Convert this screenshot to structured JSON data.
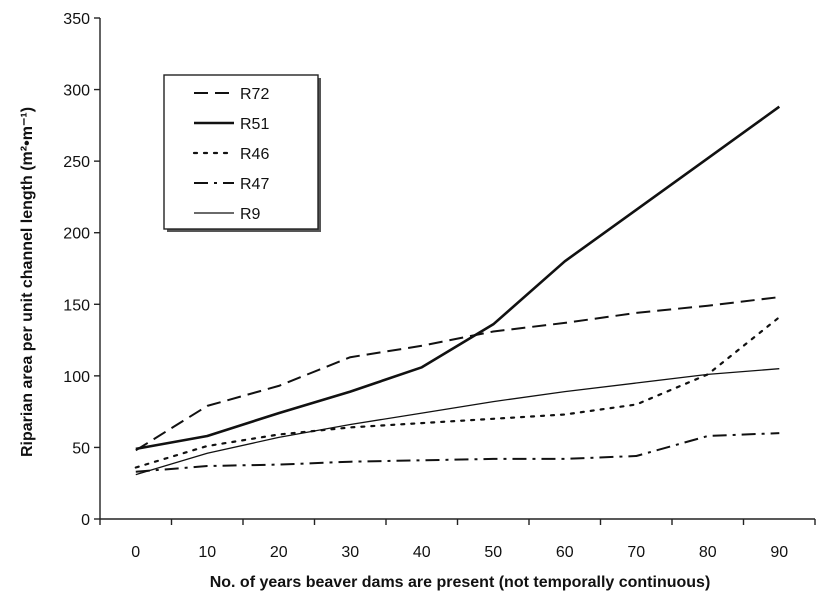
{
  "chart_data": {
    "type": "line",
    "x": [
      0,
      10,
      20,
      30,
      40,
      50,
      60,
      70,
      80,
      90
    ],
    "xlabel": "No. of years beaver dams are present (not temporally continuous)",
    "ylabel": "Riparian area per unit channel length (m²•m⁻¹)",
    "xlim": [
      -5,
      95
    ],
    "ylim": [
      0,
      350
    ],
    "xticks": [
      "0",
      "10",
      "20",
      "30",
      "40",
      "50",
      "60",
      "70",
      "80",
      "90"
    ],
    "yticks": [
      "0",
      "50",
      "100",
      "150",
      "200",
      "250",
      "300",
      "350"
    ],
    "grid": false,
    "legend_position": "top-left",
    "series": [
      {
        "name": "R72",
        "style": "dashed",
        "width": 2,
        "values": [
          48,
          79,
          93,
          113,
          121,
          131,
          137,
          144,
          149,
          155
        ]
      },
      {
        "name": "R51",
        "style": "solid",
        "width": 2.6,
        "values": [
          49,
          58,
          74,
          89,
          106,
          136,
          180,
          216,
          252,
          288
        ]
      },
      {
        "name": "R46",
        "style": "dotted",
        "width": 2.2,
        "values": [
          36,
          51,
          59,
          64,
          67,
          70,
          73,
          80,
          101,
          141
        ]
      },
      {
        "name": "R47",
        "style": "dashdot",
        "width": 2,
        "values": [
          33,
          37,
          38,
          40,
          41,
          42,
          42,
          44,
          58,
          60
        ]
      },
      {
        "name": "R9",
        "style": "solid",
        "width": 1.3,
        "values": [
          31,
          46,
          57,
          66,
          74,
          82,
          89,
          95,
          101,
          105
        ]
      }
    ]
  }
}
